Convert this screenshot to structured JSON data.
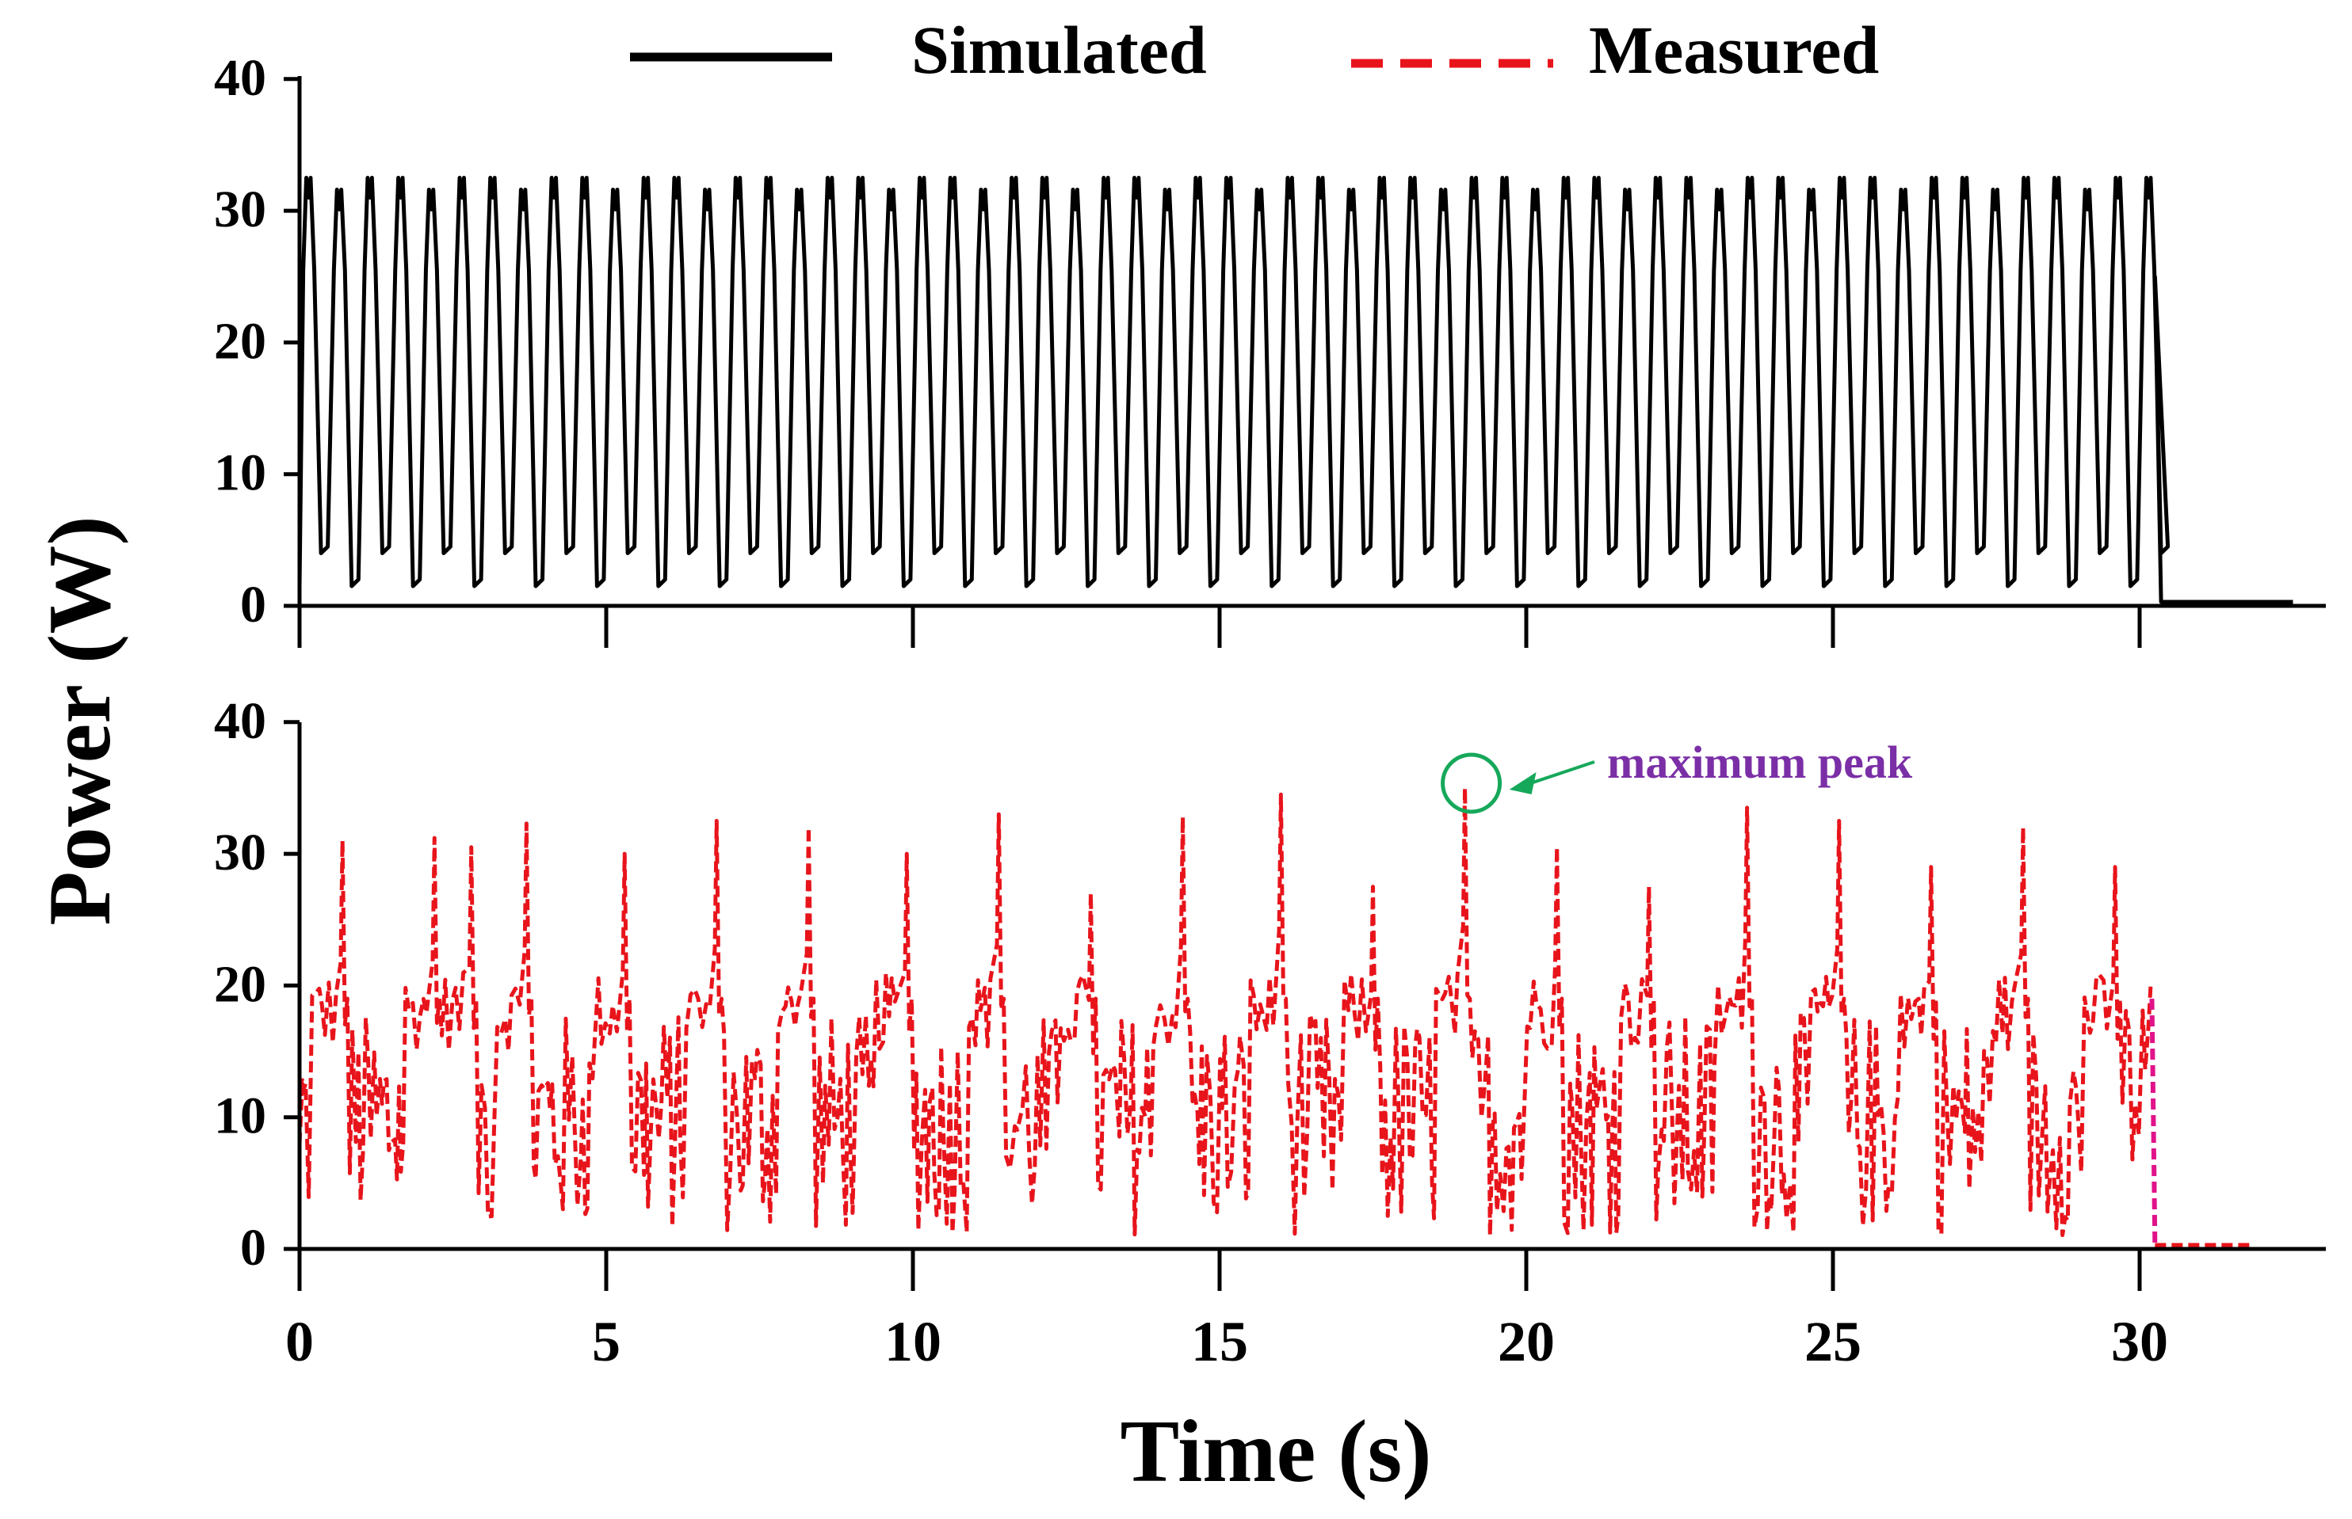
{
  "chart_data": [
    {
      "type": "line",
      "panel": "top",
      "ylabel": "Power (W)",
      "xlabel": "",
      "xlim": [
        0,
        33
      ],
      "ylim": [
        0,
        40
      ],
      "xticks": [
        0,
        5,
        10,
        15,
        20,
        25,
        30
      ],
      "yticks": [
        0,
        10,
        20,
        30,
        40
      ],
      "ytick_labels": [
        "0",
        "10",
        "20",
        "30",
        "40"
      ],
      "series": [
        {
          "name": "Simulated",
          "color": "#000000",
          "style": "solid",
          "description_params": {
            "period_s": 0.5,
            "start_s": 0.0,
            "end_s": 30.25,
            "min_w": 1.5,
            "peak_w": 32.5,
            "shoulder_w": 25.5,
            "after_w": 0.3,
            "after_end_s": 32.5
          }
        }
      ]
    },
    {
      "type": "line",
      "panel": "bottom",
      "ylabel": "Power (W)",
      "xlabel": "Time (s)",
      "xlim": [
        0,
        33
      ],
      "ylim": [
        0,
        40
      ],
      "xticks": [
        0,
        5,
        10,
        15,
        20,
        25,
        30
      ],
      "xtick_labels": [
        "0",
        "5",
        "10",
        "15",
        "20",
        "25",
        "30"
      ],
      "yticks": [
        0,
        10,
        20,
        30,
        40
      ],
      "ytick_labels": [
        "0",
        "10",
        "20",
        "30",
        "40"
      ],
      "series": [
        {
          "name": "Measured",
          "color": "#e8141b",
          "style": "dashed",
          "peaks": [
            {
              "x": 0.7,
              "y": 31.0
            },
            {
              "x": 2.2,
              "y": 31.2
            },
            {
              "x": 2.8,
              "y": 30.5
            },
            {
              "x": 3.7,
              "y": 32.3
            },
            {
              "x": 5.3,
              "y": 30.0
            },
            {
              "x": 6.8,
              "y": 32.5
            },
            {
              "x": 8.3,
              "y": 32.0
            },
            {
              "x": 9.9,
              "y": 30.0
            },
            {
              "x": 11.4,
              "y": 33.0
            },
            {
              "x": 12.9,
              "y": 27.0
            },
            {
              "x": 14.4,
              "y": 32.8
            },
            {
              "x": 16.0,
              "y": 34.5
            },
            {
              "x": 17.5,
              "y": 27.5
            },
            {
              "x": 19.0,
              "y": 35.0
            },
            {
              "x": 20.5,
              "y": 30.5
            },
            {
              "x": 22.0,
              "y": 27.5
            },
            {
              "x": 23.6,
              "y": 33.5
            },
            {
              "x": 25.1,
              "y": 32.5
            },
            {
              "x": 26.6,
              "y": 29.0
            },
            {
              "x": 28.1,
              "y": 32.0
            },
            {
              "x": 29.6,
              "y": 29.0
            }
          ],
          "drop_at_s": 30.2,
          "after_w": 0.3,
          "after_end_s": 31.8
        }
      ],
      "annotations": [
        {
          "text": "maximum peak",
          "x": 19.0,
          "y": 35.0,
          "color": "#7b2fa6",
          "marker_color": "#16a85a"
        }
      ]
    }
  ],
  "legend": {
    "items": [
      {
        "label": "Simulated",
        "color": "#000000",
        "style": "solid"
      },
      {
        "label": "Measured",
        "color": "#e8141b",
        "style": "dashed"
      }
    ],
    "placement": "top"
  },
  "shared_ylabel": "Power (W)",
  "shared_xlabel": "Time (s)"
}
